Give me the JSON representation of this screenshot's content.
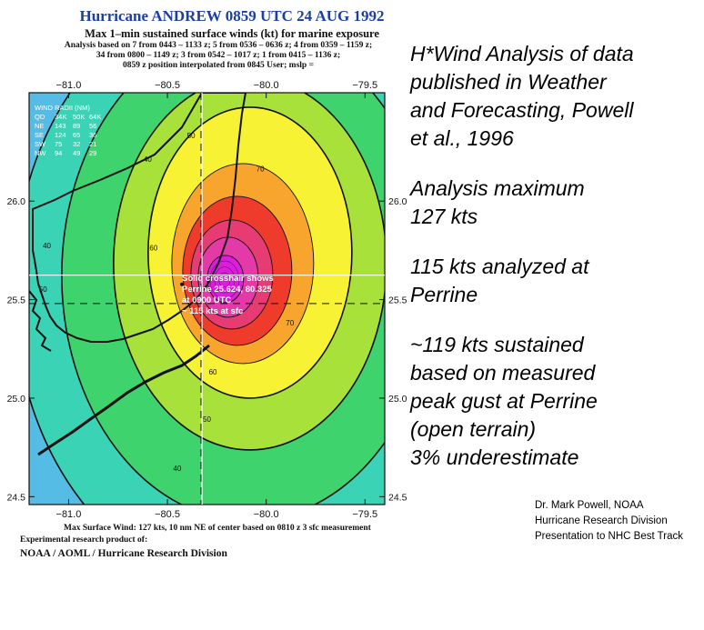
{
  "chart_data": {
    "type": "contour",
    "title": "Hurricane ANDREW 0859 UTC 24 AUG 1992",
    "subtitle": "Max 1–min sustained surface winds (kt) for marine exposure",
    "analysis_lines": [
      "Analysis based on  7 from 0443 – 1133 z; 5 from 0536 – 0636 z; 4 from 0359 – 1159 z;",
      "34 from 0800 – 1149 z; 3 from 0542 – 1017 z; 1 from 0415 – 1136 z;",
      "0859 z position interpolated from 0845 User;  mslp ="
    ],
    "x_ticks": [
      "−81.0",
      "−80.5",
      "−80.0",
      "−79.5"
    ],
    "y_ticks": [
      "26.0",
      "25.5",
      "25.0",
      "24.5"
    ],
    "xlim": [
      -81.2,
      -79.4
    ],
    "ylim": [
      24.46,
      26.55
    ],
    "center": {
      "lon": -80.22,
      "lat": 25.6
    },
    "max_wind_kt": 127,
    "contour_levels": [
      40,
      50,
      60,
      70,
      80,
      90,
      100,
      110,
      120
    ],
    "contour_labels": [
      {
        "text": "50",
        "lon": -80.38,
        "lat": 26.32
      },
      {
        "text": "70",
        "lon": -80.03,
        "lat": 26.15
      },
      {
        "text": "40",
        "lon": -80.6,
        "lat": 26.2
      },
      {
        "text": "60",
        "lon": -80.57,
        "lat": 25.75
      },
      {
        "text": "70",
        "lon": -79.88,
        "lat": 25.37
      },
      {
        "text": "40",
        "lon": -81.11,
        "lat": 25.76
      },
      {
        "text": "50",
        "lon": -81.13,
        "lat": 25.54
      },
      {
        "text": "60",
        "lon": -80.27,
        "lat": 25.12
      },
      {
        "text": "50",
        "lon": -80.3,
        "lat": 24.88
      },
      {
        "text": "40",
        "lon": -80.45,
        "lat": 24.63
      }
    ],
    "wind_radii": {
      "header": "WIND RADII (NM)",
      "columns": [
        "QD",
        "34K",
        "50K",
        "64K"
      ],
      "rows": [
        [
          "NE",
          "143",
          "89",
          "56"
        ],
        [
          "SE",
          "124",
          "65",
          "36"
        ],
        [
          "SW",
          "75",
          "32",
          "21"
        ],
        [
          "NW",
          "94",
          "49",
          "29"
        ]
      ]
    },
    "crosshair_note": [
      "Solid crosshair shows",
      "Perrine 25.624, 80.325",
      "at 0900 UTC",
      "~ 115 kts at sfc"
    ],
    "crosshairs": {
      "solid": {
        "lon": -80.325,
        "lat": 25.624
      },
      "dashed": {
        "lon": -80.33,
        "lat": 25.48
      }
    }
  },
  "footer": {
    "max_wind": "Max Surface Wind: 127 kts, 10 nm NE of center based on 0810 z 3 sfc measurement",
    "product": "Experimental research product of:",
    "org": "NOAA / AOML / Hurricane Research Division"
  },
  "right_text": {
    "p1": [
      "H*Wind Analysis of data",
      "published in Weather",
      "and Forecasting, Powell",
      "et al., 1996"
    ],
    "p2": [
      "Analysis maximum",
      "127 kts"
    ],
    "p3": [
      "115 kts analyzed at",
      "Perrine"
    ],
    "p4": [
      "~119 kts sustained",
      "based on measured",
      "peak gust at Perrine",
      "(open terrain)",
      "3% underestimate"
    ]
  },
  "credit": [
    "Dr. Mark Powell, NOAA",
    "Hurricane Research Division",
    "Presentation to NHC Best Track"
  ]
}
